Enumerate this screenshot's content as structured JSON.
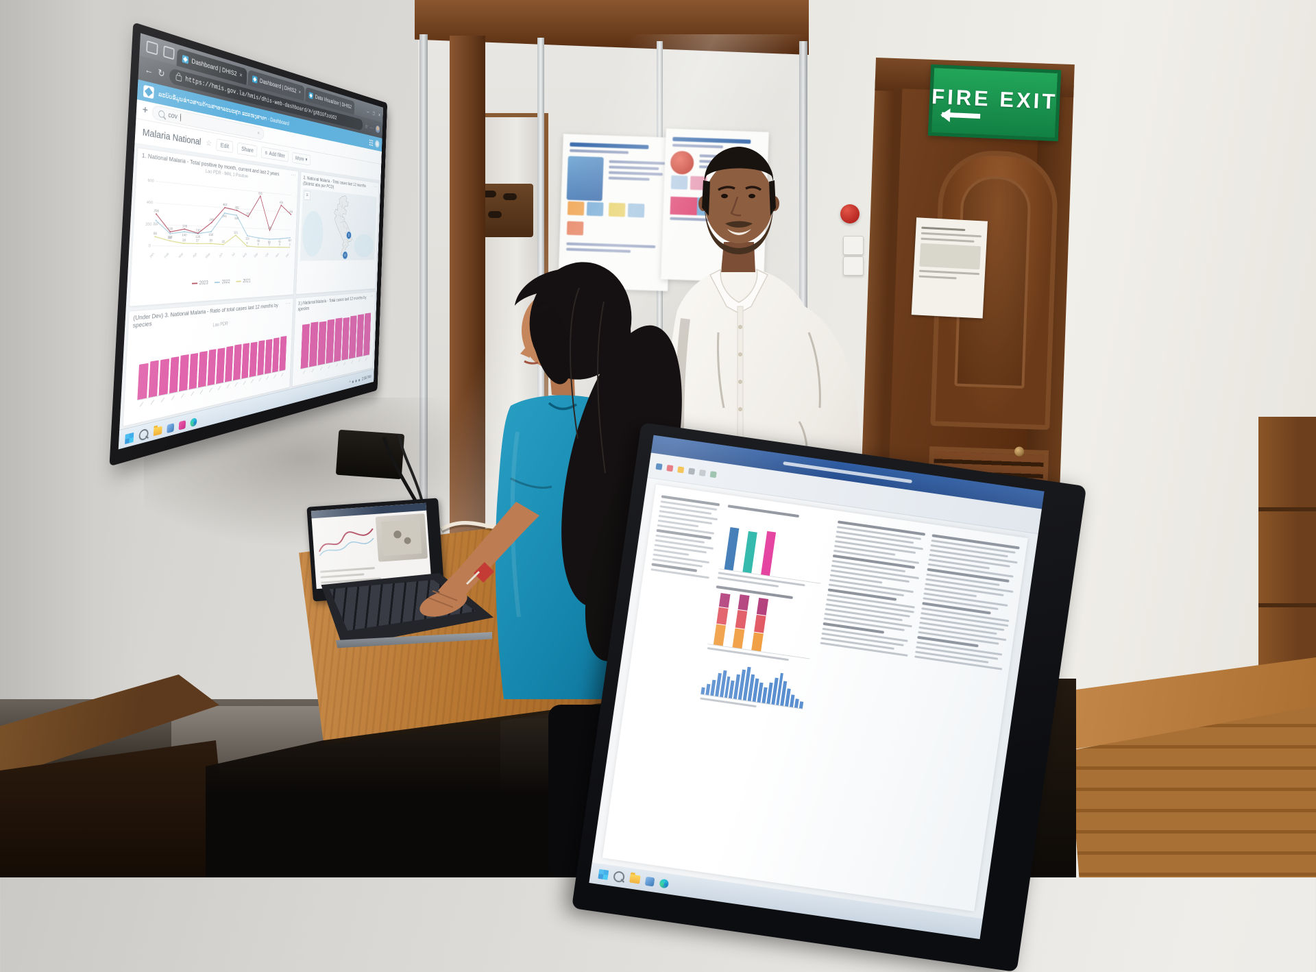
{
  "scene": {
    "fire_exit": {
      "text": "FIRE EXIT"
    }
  },
  "tv": {
    "browser": {
      "tabs": [
        {
          "label": "Dashboard | DHIS2"
        },
        {
          "label": "Dashboard | DHIS2"
        },
        {
          "label": "Data Visualizer | DHIS2"
        }
      ],
      "url": "https://hmis.gov.la/hmis/dhis-web-dashboard/#/gXB1GfzoUO2"
    },
    "appbar": {
      "title": "ລະບົບຂໍ້ມູນຂ່າວສານດ້ານສາທາລະນະສຸກ ຂະແໜງສາທາ - Dashboard"
    },
    "dashboard": {
      "search_value": "cov",
      "title": "Malaria National",
      "edit": "Edit",
      "share": "Share",
      "add_filter": "Add filter",
      "more": "More"
    },
    "taskbar": {
      "time": "2:56 PM"
    },
    "icons": {
      "back": "←",
      "refresh": "↻",
      "minimize": "–",
      "maximize": "□",
      "close": "×",
      "plus": "+",
      "clear": "×",
      "star": "☆",
      "overflow": "···",
      "caret": "▾",
      "menu": "≡",
      "tray": "^"
    }
  },
  "chart_data": [
    {
      "id": "tv-line-chart",
      "type": "line",
      "title": "1. National Malaria - Total positive by month, current and last 2 years",
      "subtitle": "Lao PDR - MAL 1 Positive",
      "categories": [
        "Jan",
        "Feb",
        "Mar",
        "Apr",
        "May",
        "Jun",
        "Jul",
        "Aug",
        "Sep",
        "Oct",
        "Nov",
        "Dec"
      ],
      "series": [
        {
          "name": "2023",
          "color": "#b04a5e",
          "values": [
            296,
            135,
            166,
            130,
            242,
            402,
            382,
            325,
            555,
            186,
            475,
            378
          ]
        },
        {
          "name": "2022",
          "color": "#9ec8de",
          "values": [
            237,
            118,
            140,
            126,
            150,
            345,
            330,
            119,
            98,
            88,
            95,
            110
          ]
        },
        {
          "name": "2021",
          "color": "#d9d987",
          "values": [
            86,
            50,
            28,
            27,
            30,
            22,
            121,
            9,
            0,
            0,
            0,
            0
          ]
        }
      ],
      "ylim": [
        0,
        600
      ],
      "yticks": [
        0,
        200,
        400,
        600
      ],
      "legend_position": "bottom",
      "grid": true
    },
    {
      "id": "tv-map",
      "type": "map",
      "title": "2. National Malaria - Total cases last 12 months (District abs per PCD)",
      "markers": [
        {
          "label": "3"
        },
        {
          "label": "0"
        }
      ]
    },
    {
      "id": "tv-bar-left",
      "type": "bar",
      "title": "(Under Dev) 3. National Malaria - Ratio of total cases last 12 months by species",
      "subtitle": "Lao PDR",
      "color": "#de58a5",
      "values": [
        60,
        62,
        63,
        64,
        65,
        65,
        66,
        67,
        67,
        68,
        69,
        69,
        70,
        71,
        71,
        72,
        73
      ],
      "categories": [
        "",
        "",
        "",
        "",
        "",
        "",
        "",
        "",
        "",
        "",
        "",
        "",
        "",
        "",
        "",
        "",
        ""
      ]
    },
    {
      "id": "tv-bar-right",
      "type": "bar",
      "title": "3.) National Malaria - Total cases last 12 months by species",
      "color": "#de58a5",
      "values": [
        84,
        86,
        85,
        87,
        88,
        87,
        89,
        90,
        91
      ],
      "categories": [
        "",
        "",
        "",
        "",
        "",
        "",
        "",
        "",
        ""
      ]
    },
    {
      "id": "doc-bars",
      "type": "bar",
      "values": [
        72,
        70,
        74
      ],
      "colors": [
        "#2e6fb0",
        "#22b3a6",
        "#e3399b"
      ]
    },
    {
      "id": "doc-stacked",
      "type": "bar",
      "series": [
        {
          "name": "seg1",
          "values": [
            30,
            28,
            26
          ]
        },
        {
          "name": "seg2",
          "values": [
            24,
            26,
            25
          ]
        },
        {
          "name": "seg3",
          "values": [
            20,
            22,
            24
          ]
        }
      ],
      "colors": [
        "#f09c3e",
        "#e05560",
        "#b03a78"
      ]
    },
    {
      "id": "doc-histogram",
      "type": "bar",
      "color": "#5a8fd0",
      "values": [
        8,
        12,
        18,
        26,
        30,
        24,
        20,
        28,
        34,
        38,
        30,
        26,
        22,
        18,
        24,
        30,
        36,
        28,
        20,
        14,
        10,
        8
      ]
    }
  ]
}
